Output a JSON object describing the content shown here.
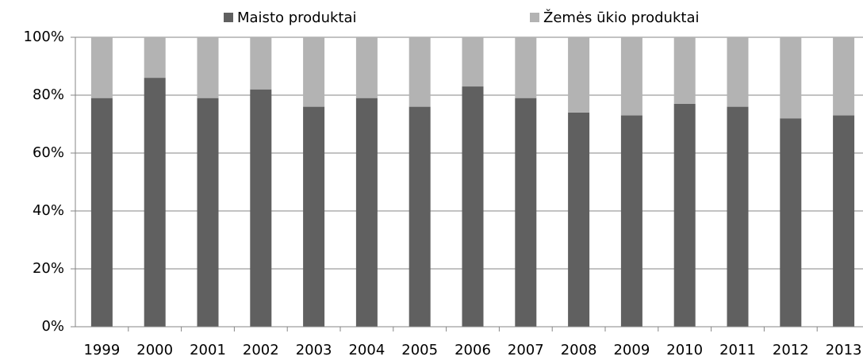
{
  "chart_data": {
    "type": "stacked_bar",
    "categories": [
      "1999",
      "2000",
      "2001",
      "2002",
      "2003",
      "2004",
      "2005",
      "2006",
      "2007",
      "2008",
      "2009",
      "2010",
      "2011",
      "2012",
      "2013"
    ],
    "series": [
      {
        "name": "Maisto produktai",
        "color": "#606060",
        "values": [
          79,
          86,
          79,
          82,
          76,
          79,
          76,
          83,
          79,
          74,
          73,
          77,
          76,
          72,
          73
        ]
      },
      {
        "name": "Žemės ūkio produktai",
        "color": "#b3b3b3",
        "values": [
          21,
          14,
          21,
          18,
          24,
          21,
          24,
          17,
          21,
          26,
          27,
          23,
          24,
          28,
          27
        ]
      }
    ],
    "ylim": [
      0,
      100
    ],
    "yticks": [
      {
        "value": 0,
        "label": "0%"
      },
      {
        "value": 20,
        "label": "20%"
      },
      {
        "value": 40,
        "label": "40%"
      },
      {
        "value": 60,
        "label": "60%"
      },
      {
        "value": 80,
        "label": "80%"
      },
      {
        "value": 100,
        "label": "100%"
      }
    ],
    "grid": true,
    "legend": "top"
  }
}
